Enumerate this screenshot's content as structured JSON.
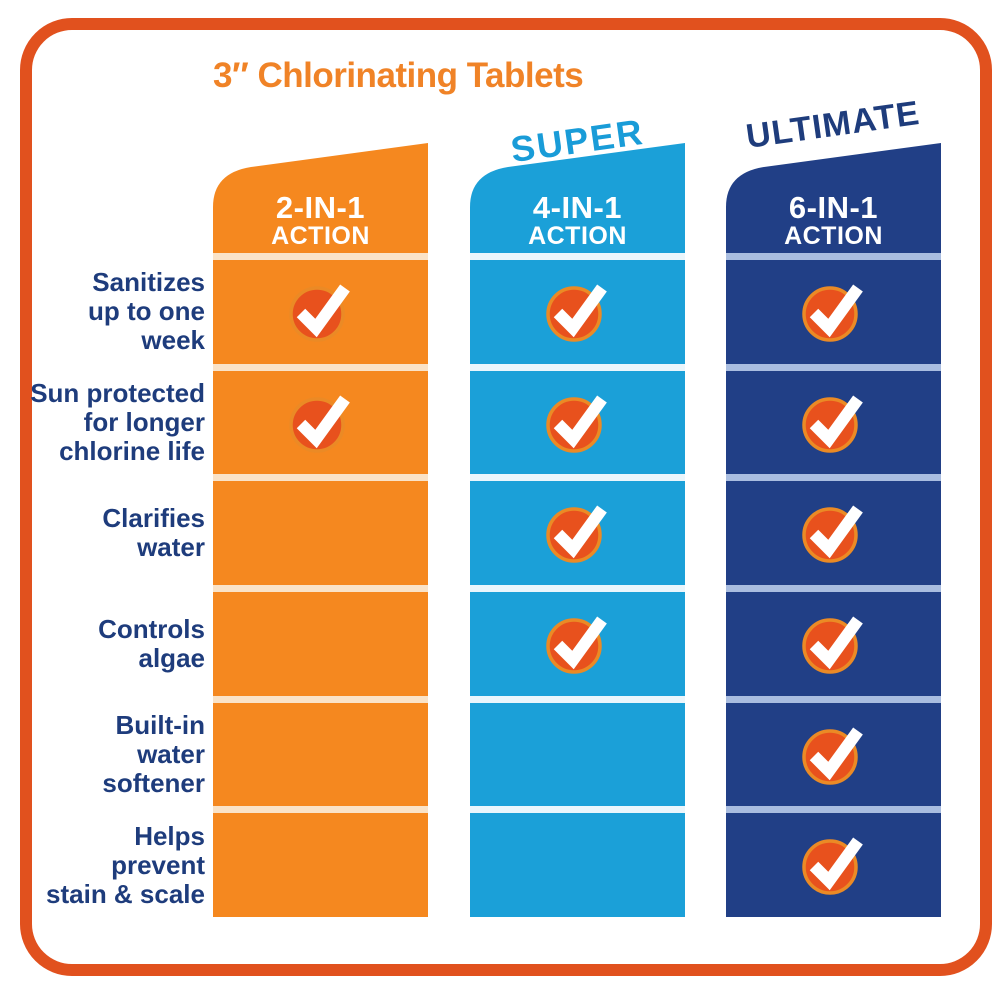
{
  "title": "3″ Chlorinating Tablets",
  "colors": {
    "background": "#FFFFFF",
    "frame_border": "#E1511E",
    "title_text": "#F08327",
    "label_text": "#1E3C7C",
    "header_text": "#FFFFFF",
    "check_circle": "#E8511D",
    "check_ring": "#EB8A25",
    "check_mark": "#FFFFFF"
  },
  "rows": [
    {
      "label": "Sanitizes up to one week",
      "lines": [
        "Sanitizes",
        "up to one",
        "week"
      ]
    },
    {
      "label": "Sun protected for longer chlorine life",
      "lines": [
        "Sun protected",
        "for longer",
        "chlorine life"
      ]
    },
    {
      "label": "Clarifies water",
      "lines": [
        "Clarifies",
        "water"
      ]
    },
    {
      "label": "Controls algae",
      "lines": [
        "Controls",
        "algae"
      ]
    },
    {
      "label": "Built-in water softener",
      "lines": [
        "Built-in",
        "water",
        "softener"
      ]
    },
    {
      "label": "Helps prevent stain & scale",
      "lines": [
        "Helps",
        "prevent",
        "stain & scale"
      ]
    }
  ],
  "columns": [
    {
      "tagline": "",
      "tagline_color": "transparent",
      "name_line1": "2-IN-1",
      "name_line2": "ACTION",
      "color": "#F5881F",
      "separator_color": "#FAE3C8",
      "checks": [
        true,
        true,
        false,
        false,
        false,
        false
      ]
    },
    {
      "tagline": "SUPER",
      "tagline_color": "#199CD8",
      "name_line1": "4-IN-1",
      "name_line2": "ACTION",
      "color": "#1BA0D8",
      "separator_color": "#EAF6FC",
      "checks": [
        true,
        true,
        true,
        true,
        false,
        false
      ]
    },
    {
      "tagline": "ULTIMATE",
      "tagline_color": "#1E3C7C",
      "name_line1": "6-IN-1",
      "name_line2": "ACTION",
      "color": "#213F86",
      "separator_color": "#A9BDE0",
      "checks": [
        true,
        true,
        true,
        true,
        true,
        true
      ]
    }
  ],
  "chart_data": {
    "type": "table",
    "title": "3″ Chlorinating Tablets",
    "columns": [
      "2-IN-1 ACTION",
      "SUPER 4-IN-1 ACTION",
      "ULTIMATE 6-IN-1 ACTION"
    ],
    "rows": [
      "Sanitizes up to one week",
      "Sun protected for longer chlorine life",
      "Clarifies water",
      "Controls algae",
      "Built-in water softener",
      "Helps prevent stain & scale"
    ],
    "matrix": [
      [
        true,
        true,
        true
      ],
      [
        true,
        true,
        true
      ],
      [
        false,
        true,
        true
      ],
      [
        false,
        true,
        true
      ],
      [
        false,
        false,
        true
      ],
      [
        false,
        false,
        true
      ]
    ],
    "legend_position": "none",
    "grid": false
  }
}
